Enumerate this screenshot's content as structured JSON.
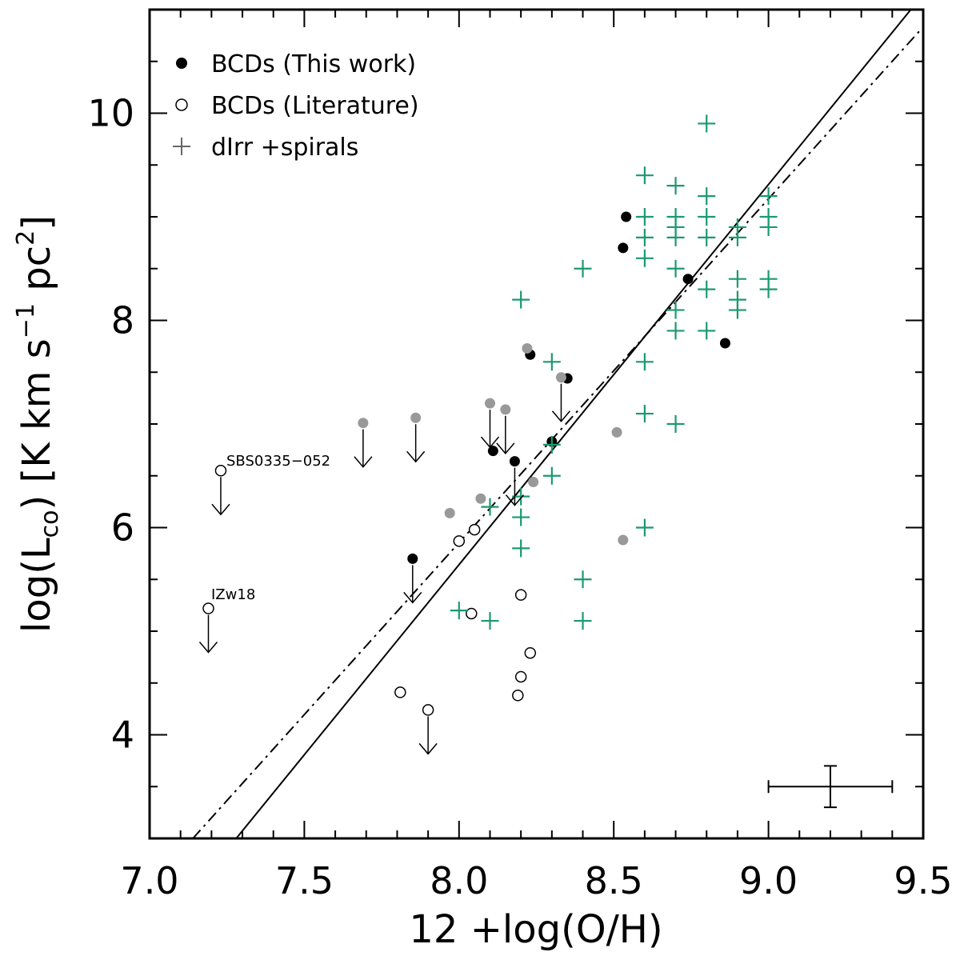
{
  "chart_data": {
    "type": "scatter",
    "xlabel": "12 +log(O/H)",
    "ylabel_main": "log(L",
    "ylabel_sub": "co",
    "ylabel_mid": ") [K km s",
    "ylabel_sup1": "−1",
    "ylabel_pc": " pc",
    "ylabel_sup2": "2",
    "ylabel_end": "]",
    "xlim": [
      7.0,
      9.5
    ],
    "ylim": [
      3.0,
      11.0
    ],
    "x_ticks": [
      7.0,
      7.5,
      8.0,
      8.5,
      9.0,
      9.5
    ],
    "x_tick_labels": [
      "7.0",
      "7.5",
      "8.0",
      "8.5",
      "9.0",
      "9.5"
    ],
    "y_ticks": [
      4,
      6,
      8,
      10
    ],
    "y_tick_labels": [
      "4",
      "6",
      "8",
      "10"
    ],
    "legend": {
      "placement": "top-left",
      "entries": [
        {
          "marker": "filled-circle",
          "label": "BCDs (This work)"
        },
        {
          "marker": "open-circle",
          "label": "BCDs (Literature)"
        },
        {
          "marker": "plus",
          "label": "dIrr +spirals"
        }
      ]
    },
    "colors": {
      "this_work": "#000000",
      "literature": "#000000",
      "gray": "#999999",
      "green": "#1a9a6e"
    },
    "series": [
      {
        "name": "BCDs (This work)",
        "marker": "filled-circle",
        "points": [
          [
            8.54,
            9.0
          ],
          [
            8.53,
            8.7
          ],
          [
            8.74,
            8.4
          ],
          [
            8.86,
            7.78
          ],
          [
            8.23,
            7.67
          ],
          [
            8.35,
            7.44
          ],
          [
            8.3,
            6.83
          ],
          [
            8.11,
            6.74
          ],
          [
            8.18,
            6.64
          ],
          [
            7.85,
            5.7
          ]
        ]
      },
      {
        "name": "BCDs (Literature)",
        "marker": "open-circle",
        "points": [
          [
            7.23,
            6.55
          ],
          [
            7.19,
            5.22
          ],
          [
            8.0,
            5.87
          ],
          [
            8.05,
            5.98
          ],
          [
            8.2,
            5.35
          ],
          [
            8.04,
            5.17
          ],
          [
            8.23,
            4.79
          ],
          [
            8.2,
            4.56
          ],
          [
            8.19,
            4.38
          ],
          [
            7.81,
            4.41
          ],
          [
            7.9,
            4.24
          ]
        ]
      },
      {
        "name": "BCDs (gray)",
        "marker": "gray-circle",
        "points": [
          [
            8.22,
            7.73
          ],
          [
            7.69,
            7.01
          ],
          [
            7.86,
            7.06
          ],
          [
            8.1,
            7.2
          ],
          [
            8.15,
            7.14
          ],
          [
            8.33,
            7.45
          ],
          [
            8.51,
            6.92
          ],
          [
            8.07,
            6.28
          ],
          [
            7.97,
            6.14
          ],
          [
            8.24,
            6.44
          ],
          [
            8.53,
            5.88
          ]
        ]
      },
      {
        "name": "dIrr +spirals",
        "marker": "plus",
        "points": [
          [
            8.8,
            9.9
          ],
          [
            8.6,
            9.4
          ],
          [
            8.7,
            9.3
          ],
          [
            8.8,
            9.2
          ],
          [
            9.0,
            9.2
          ],
          [
            8.6,
            9.0
          ],
          [
            8.7,
            9.0
          ],
          [
            8.8,
            9.0
          ],
          [
            9.0,
            9.0
          ],
          [
            8.7,
            8.9
          ],
          [
            8.9,
            8.9
          ],
          [
            9.0,
            8.9
          ],
          [
            8.6,
            8.8
          ],
          [
            8.7,
            8.8
          ],
          [
            8.8,
            8.8
          ],
          [
            8.9,
            8.8
          ],
          [
            8.6,
            8.6
          ],
          [
            8.4,
            8.5
          ],
          [
            8.7,
            8.5
          ],
          [
            8.9,
            8.4
          ],
          [
            9.0,
            8.4
          ],
          [
            8.8,
            8.3
          ],
          [
            9.0,
            8.3
          ],
          [
            8.2,
            8.2
          ],
          [
            8.9,
            8.2
          ],
          [
            8.7,
            8.1
          ],
          [
            8.9,
            8.1
          ],
          [
            8.7,
            7.9
          ],
          [
            8.8,
            7.9
          ],
          [
            8.3,
            7.6
          ],
          [
            8.6,
            7.6
          ],
          [
            8.6,
            7.1
          ],
          [
            8.7,
            7.0
          ],
          [
            8.3,
            6.8
          ],
          [
            8.3,
            6.5
          ],
          [
            8.2,
            6.3
          ],
          [
            8.1,
            6.2
          ],
          [
            8.2,
            6.1
          ],
          [
            8.6,
            6.0
          ],
          [
            8.2,
            5.8
          ],
          [
            8.4,
            5.5
          ],
          [
            8.0,
            5.2
          ],
          [
            8.1,
            5.1
          ],
          [
            8.4,
            5.1
          ]
        ]
      }
    ],
    "upper_limits": [
      [
        7.23,
        6.55
      ],
      [
        7.19,
        5.22
      ],
      [
        7.69,
        7.01
      ],
      [
        7.86,
        7.06
      ],
      [
        8.1,
        7.2
      ],
      [
        8.15,
        7.14
      ],
      [
        8.33,
        7.45
      ],
      [
        7.85,
        5.7
      ],
      [
        7.9,
        4.24
      ],
      [
        8.18,
        6.64
      ]
    ],
    "fit_lines": [
      {
        "style": "solid",
        "points": [
          [
            7.28,
            3.0
          ],
          [
            9.46,
            11.0
          ]
        ]
      },
      {
        "style": "dash-dot",
        "points": [
          [
            7.14,
            3.0
          ],
          [
            9.49,
            10.8
          ]
        ]
      }
    ],
    "error_bar": {
      "x": 9.2,
      "y": 3.5,
      "xerr": 0.2,
      "yerr": 0.2
    },
    "annotations": [
      {
        "text": "SBS0335−052",
        "x": 7.23,
        "y": 6.55
      },
      {
        "text": "IZw18",
        "x": 7.19,
        "y": 5.22
      }
    ]
  }
}
